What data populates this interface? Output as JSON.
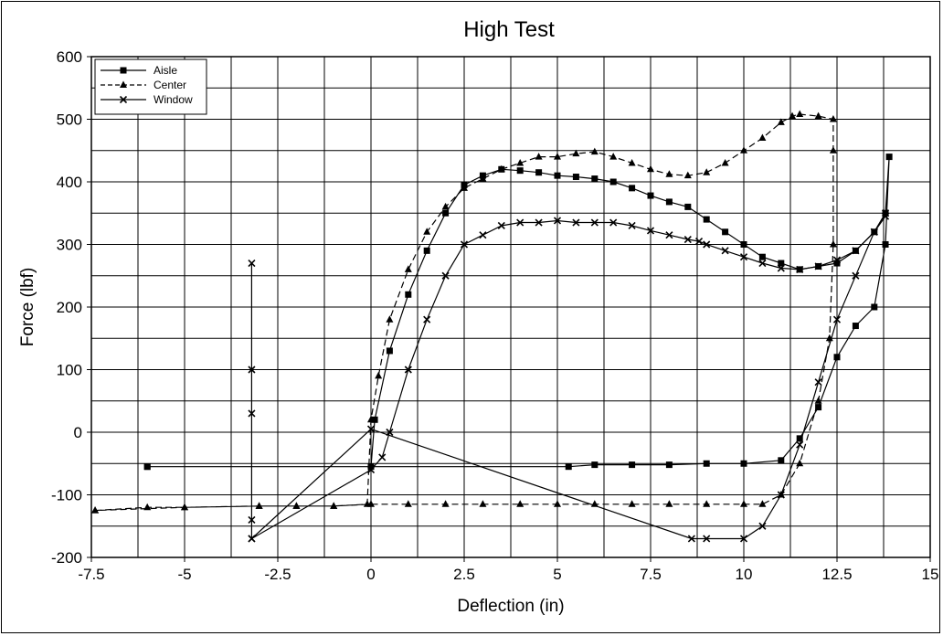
{
  "chart_data": {
    "type": "line",
    "title": "High Test",
    "xlabel": "Deflection (in)",
    "ylabel": "Force (lbf)",
    "xlim": [
      -7.5,
      15
    ],
    "ylim": [
      -200,
      600
    ],
    "x_ticks": [
      -7.5,
      -5,
      -2.5,
      0,
      2.5,
      5,
      7.5,
      10,
      12.5,
      15
    ],
    "x_tick_labels": [
      "-7.5",
      "-5",
      "-2.5",
      "0",
      "2.5",
      "5",
      "7.5",
      "10",
      "12.5",
      "15"
    ],
    "y_ticks": [
      -200,
      -100,
      0,
      100,
      200,
      300,
      400,
      500,
      600
    ],
    "y_tick_labels": [
      "-200",
      "-100",
      "0",
      "100",
      "200",
      "300",
      "400",
      "500",
      "600"
    ],
    "grid": true,
    "legend_position": "top-left",
    "series": [
      {
        "name": "Aisle",
        "style": "solid",
        "marker": "square",
        "color": "#000000",
        "x": [
          -6.0,
          0.0,
          0.1,
          0.5,
          1.0,
          1.5,
          2.0,
          2.5,
          3.0,
          3.5,
          4.0,
          4.5,
          5.0,
          5.5,
          6.0,
          6.5,
          7.0,
          7.5,
          8.0,
          8.5,
          9.0,
          9.5,
          10.0,
          10.5,
          11.0,
          11.5,
          12.0,
          12.5,
          13.0,
          13.5,
          13.8,
          13.9,
          13.8,
          13.5,
          13.0,
          12.5,
          12.0,
          11.5,
          11.0,
          10.0,
          9.0,
          8.0,
          7.0,
          6.0,
          5.3,
          -6.0
        ],
        "y": [
          -55,
          -55,
          20,
          130,
          220,
          290,
          350,
          395,
          410,
          420,
          418,
          415,
          410,
          408,
          405,
          400,
          390,
          378,
          368,
          360,
          340,
          320,
          300,
          280,
          270,
          260,
          265,
          270,
          290,
          320,
          350,
          440,
          300,
          200,
          170,
          120,
          40,
          -10,
          -45,
          -50,
          -50,
          -52,
          -52,
          -52,
          -55,
          -55
        ]
      },
      {
        "name": "Center",
        "style": "dashed",
        "marker": "triangle",
        "color": "#000000",
        "x": [
          -7.4,
          -6.0,
          -5.0,
          -3.0,
          -2.0,
          -1.0,
          -0.1,
          0.0,
          0.2,
          0.5,
          1.0,
          1.5,
          2.0,
          2.5,
          3.0,
          3.5,
          4.0,
          4.5,
          5.0,
          5.5,
          6.0,
          6.5,
          7.0,
          7.5,
          8.0,
          8.5,
          9.0,
          9.5,
          10.0,
          10.5,
          11.0,
          11.3,
          11.5,
          12.0,
          12.4,
          12.4,
          12.4,
          12.3,
          12.0,
          11.5,
          11.0,
          10.5,
          10.0,
          9.0,
          8.0,
          7.0,
          6.0,
          5.0,
          4.0,
          3.0,
          2.0,
          1.0,
          0.0,
          -1.0,
          -2.0,
          -3.0,
          -5.0,
          -7.4
        ],
        "y": [
          -125,
          -120,
          -120,
          -118,
          -118,
          -118,
          -115,
          20,
          90,
          180,
          260,
          320,
          360,
          390,
          405,
          420,
          430,
          440,
          440,
          445,
          448,
          440,
          430,
          420,
          412,
          410,
          415,
          430,
          450,
          470,
          495,
          505,
          508,
          505,
          500,
          450,
          300,
          150,
          50,
          -50,
          -100,
          -115,
          -115,
          -115,
          -115,
          -115,
          -115,
          -115,
          -115,
          -115,
          -115,
          -115,
          -115,
          -118,
          -118,
          -118,
          -120,
          -125
        ]
      },
      {
        "name": "Window",
        "style": "solid",
        "marker": "x",
        "color": "#000000",
        "x": [
          -3.2,
          -3.2,
          -3.2,
          -3.2,
          -3.2,
          0.0,
          0.3,
          0.5,
          1.0,
          1.5,
          2.0,
          2.5,
          3.0,
          3.5,
          4.0,
          4.5,
          5.0,
          5.5,
          6.0,
          6.5,
          7.0,
          7.5,
          8.0,
          8.5,
          8.8,
          9.0,
          9.5,
          10.0,
          10.5,
          11.0,
          11.5,
          12.0,
          12.5,
          13.0,
          13.5,
          13.8,
          13.8,
          13.5,
          13.0,
          12.5,
          12.0,
          11.5,
          11.0,
          10.5,
          10.0,
          9.0,
          8.6,
          0.0,
          -3.2
        ],
        "y": [
          270,
          100,
          30,
          -140,
          -170,
          -60,
          -40,
          0,
          100,
          180,
          250,
          300,
          315,
          330,
          335,
          335,
          338,
          335,
          335,
          335,
          330,
          322,
          315,
          308,
          305,
          300,
          290,
          280,
          270,
          262,
          260,
          265,
          275,
          290,
          320,
          345,
          350,
          320,
          250,
          180,
          80,
          -20,
          -100,
          -150,
          -170,
          -170,
          -170,
          5,
          -170
        ]
      }
    ]
  }
}
